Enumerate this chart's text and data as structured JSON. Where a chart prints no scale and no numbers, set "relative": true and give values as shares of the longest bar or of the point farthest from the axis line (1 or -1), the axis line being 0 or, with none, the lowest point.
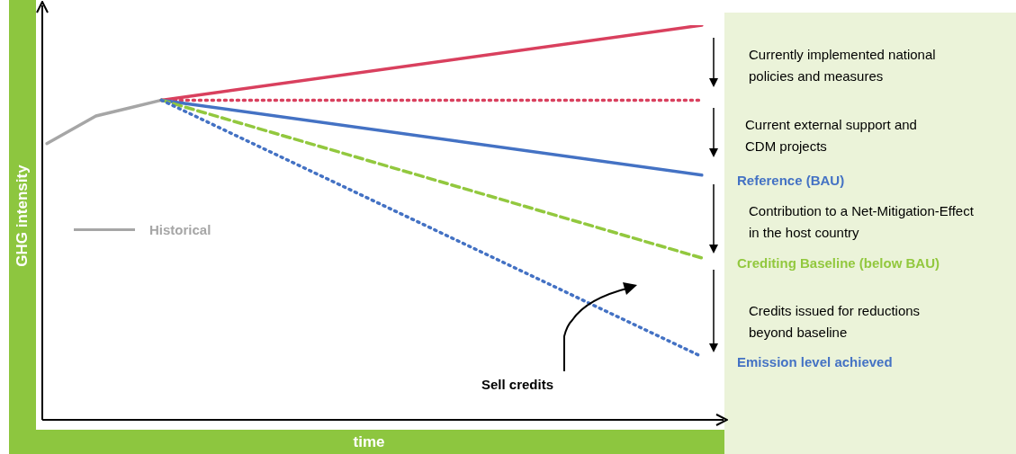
{
  "chart_data": {
    "type": "line",
    "relative": true,
    "xlabel": "time",
    "ylabel": "GHG intensity",
    "legend": "left",
    "marker": "none",
    "tick_labels": false,
    "categories": [
      null,
      null,
      null,
      null,
      null,
      null,
      null,
      null,
      null,
      null,
      null,
      null,
      null,
      null,
      null,
      null,
      null,
      null,
      null,
      null,
      null,
      null,
      null,
      null,
      null,
      null,
      null,
      null,
      null,
      null,
      null,
      null,
      null,
      null,
      null,
      null,
      null,
      null,
      null,
      null,
      null
    ],
    "series": [
      {
        "name": "Historical",
        "color": "#a6a6a6",
        "line_style": "solid",
        "values": [
          0.7,
          null,
          null,
          0.77,
          null,
          0.79,
          null,
          0.81,
          null,
          null,
          null,
          null,
          null,
          null,
          null,
          null,
          null,
          null,
          null,
          null,
          null,
          null,
          null,
          null,
          null,
          null,
          null,
          null,
          null,
          null,
          null,
          null,
          null,
          null,
          null,
          null,
          null,
          null,
          null,
          null,
          null
        ]
      },
      {
        "color": "#d9405e",
        "line_style": "solid",
        "values": [
          null,
          null,
          null,
          null,
          null,
          null,
          null,
          0.81,
          null,
          null,
          null,
          null,
          null,
          null,
          null,
          null,
          null,
          null,
          null,
          null,
          null,
          null,
          null,
          null,
          null,
          null,
          null,
          null,
          null,
          null,
          null,
          null,
          null,
          null,
          null,
          null,
          null,
          null,
          null,
          null,
          1
        ]
      },
      {
        "color": "#d9405e",
        "line_style": "dotted",
        "values": [
          null,
          null,
          null,
          null,
          null,
          null,
          null,
          0.81,
          null,
          null,
          null,
          null,
          null,
          null,
          null,
          null,
          null,
          null,
          null,
          null,
          null,
          null,
          null,
          null,
          null,
          null,
          null,
          null,
          null,
          null,
          null,
          null,
          null,
          null,
          null,
          null,
          null,
          null,
          null,
          null,
          0.81
        ]
      },
      {
        "name": "Reference (BAU)",
        "color": "#4472c4",
        "line_style": "solid",
        "values": [
          null,
          null,
          null,
          null,
          null,
          null,
          null,
          0.81,
          null,
          null,
          null,
          null,
          null,
          null,
          null,
          null,
          null,
          null,
          null,
          null,
          null,
          null,
          null,
          null,
          null,
          null,
          null,
          null,
          null,
          null,
          null,
          null,
          null,
          null,
          null,
          null,
          null,
          null,
          null,
          null,
          0.62
        ]
      },
      {
        "name": "Crediting Baseline (below BAU)",
        "color": "#92c83e",
        "line_style": "dashed",
        "values": [
          null,
          null,
          null,
          null,
          null,
          null,
          null,
          0.81,
          null,
          null,
          null,
          null,
          null,
          null,
          null,
          null,
          null,
          null,
          null,
          null,
          null,
          null,
          null,
          null,
          null,
          null,
          null,
          null,
          null,
          null,
          null,
          null,
          null,
          null,
          null,
          null,
          null,
          null,
          null,
          null,
          0.41
        ]
      },
      {
        "name": "Emission level achieved",
        "color": "#4472c4",
        "line_style": "dotted",
        "values": [
          null,
          null,
          null,
          null,
          null,
          null,
          null,
          0.81,
          null,
          null,
          null,
          null,
          null,
          null,
          null,
          null,
          null,
          null,
          null,
          null,
          null,
          null,
          null,
          null,
          null,
          null,
          null,
          null,
          null,
          null,
          null,
          null,
          null,
          null,
          null,
          null,
          null,
          null,
          null,
          null,
          0.16
        ]
      }
    ],
    "annotations": [
      "Currently implemented national policies and measures",
      "Current external support and CDM projects",
      "Contribution to a Net-Mitigation-Effect in the host country",
      "Credits issued for reductions beyond baseline",
      "Sell credits"
    ]
  }
}
